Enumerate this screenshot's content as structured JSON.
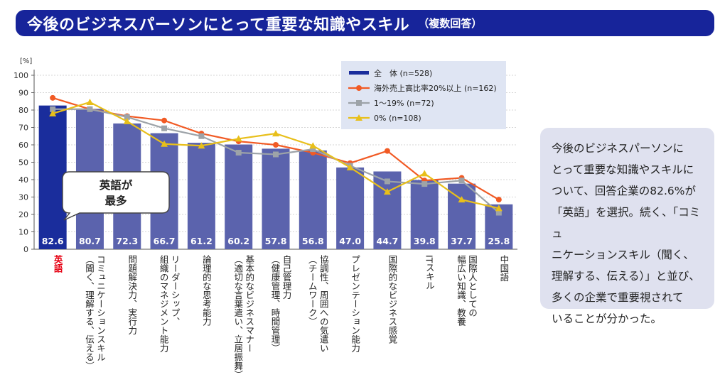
{
  "header": {
    "title": "今後のビジネスパーソンにとって重要な知識やスキル",
    "subtitle": "（複数回答）"
  },
  "chart_data": {
    "type": "bar",
    "ylabel": "[%]",
    "ylim": [
      0,
      100
    ],
    "yticks": [
      0,
      10,
      20,
      30,
      40,
      50,
      60,
      70,
      80,
      90,
      100
    ],
    "categories": [
      "英語",
      "コミュニケーションスキル\n（聞く、理解する、伝える）",
      "問題解決力、実行力",
      "リーダーシップ、\n組織のマネジメント能力",
      "論理的な思考能力",
      "基本的なビジネスマナー\n（適切な言葉遣い、立居振舞）",
      "自己管理力\n（健康管理、時間管理）",
      "協調性、周囲への気遣い\n（チームワーク）",
      "プレゼンテーション能力",
      "国際的なビジネス感覚",
      "ITスキル",
      "国際人としての\n幅広い知識、教養",
      "中国語"
    ],
    "series": [
      {
        "name": "全　体 (n=528)",
        "type": "bar",
        "color": "#5b63ad",
        "highlight_color": "#1a2d9c",
        "values": [
          82.6,
          80.7,
          72.3,
          66.7,
          61.2,
          60.2,
          57.8,
          56.8,
          47.0,
          44.7,
          39.8,
          37.7,
          25.8
        ],
        "labels": [
          "82.6",
          "80.7",
          "72.3",
          "66.7",
          "61.2",
          "60.2",
          "57.8",
          "56.8",
          "47.0",
          "44.7",
          "39.8",
          "37.7",
          "25.8"
        ]
      },
      {
        "name": "海外売上高比率20%以上 (n=162)",
        "type": "line",
        "color": "#f15a24",
        "marker": "circle",
        "values": [
          87,
          80.5,
          76.5,
          74,
          66.5,
          62,
          60,
          55.5,
          49.5,
          56.5,
          39.5,
          41,
          28.5
        ]
      },
      {
        "name": "1〜19% (n=72)",
        "type": "line",
        "color": "#9da3a8",
        "marker": "square",
        "values": [
          80.5,
          80.5,
          76,
          69.5,
          65,
          55.5,
          54.5,
          57.5,
          48,
          39,
          37.5,
          39.5,
          21
        ]
      },
      {
        "name": "0% (n=108)",
        "type": "line",
        "color": "#e8bf1a",
        "marker": "triangle",
        "values": [
          78,
          84.5,
          73.5,
          60.5,
          59.5,
          63.5,
          66.5,
          59.5,
          47,
          33,
          43.5,
          28.5,
          23.5
        ]
      }
    ],
    "legend_position": "top-right",
    "grid": true,
    "callout": "英語が\n最多"
  },
  "note": {
    "text": "今後のビジネスパーソンに\nとって重要な知識やスキルに\nついて、回答企業の82.6%が\n「英語」を選択。続く、「コミュ\nニケーションスキル（聞く、\n理解する、伝える）」と並び、\n多くの企業で重要視されて\nいることが分かった。"
  },
  "colors": {
    "banner": "#17249a",
    "bar": "#5b63ad",
    "bar_highlight": "#1a2d9c",
    "legend_bg": "#dfe5f3",
    "note_bg": "#dfe1ef",
    "highlight_label": "#e60012"
  }
}
